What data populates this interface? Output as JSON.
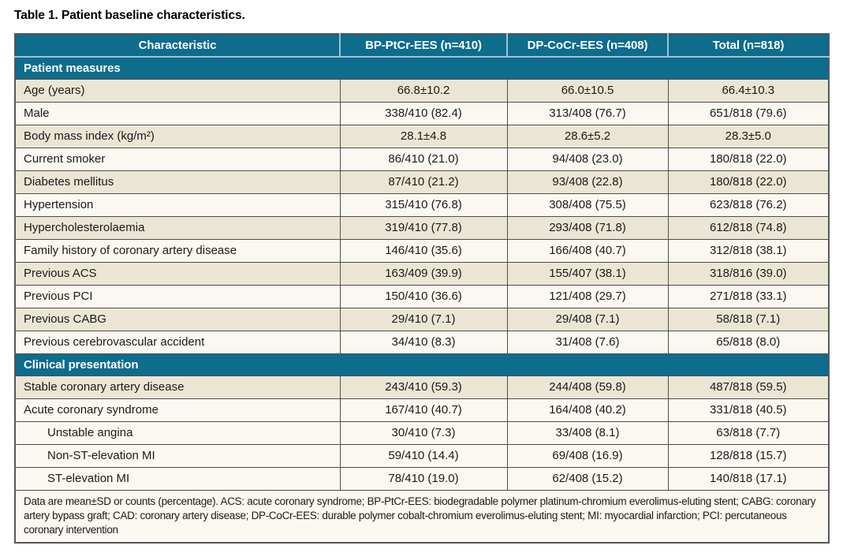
{
  "title": "Table 1. Patient baseline characteristics.",
  "colors": {
    "header_bg": "#0e6c8d",
    "row_beige": "#ebe6d4",
    "row_white": "#faf8f1",
    "header_divider": "#a3c0ce",
    "border_dark": "#4d4d4d",
    "border_outer": "#55585a"
  },
  "table": {
    "columns": [
      "Characteristic",
      "BP-PtCr-EES (n=410)",
      "DP-CoCr-EES (n=408)",
      "Total (n=818)"
    ],
    "sections": [
      {
        "header": "Patient measures",
        "rows": [
          {
            "label": "Age (years)",
            "indent": false,
            "shade": "beige",
            "values": [
              "66.8±10.2",
              "66.0±10.5",
              "66.4±10.3"
            ]
          },
          {
            "label": "Male",
            "indent": false,
            "shade": "white",
            "values": [
              "338/410 (82.4)",
              "313/408 (76.7)",
              "651/818 (79.6)"
            ]
          },
          {
            "label": "Body mass index (kg/m²)",
            "indent": false,
            "shade": "beige",
            "values": [
              "28.1±4.8",
              "28.6±5.2",
              "28.3±5.0"
            ]
          },
          {
            "label": "Current smoker",
            "indent": false,
            "shade": "white",
            "values": [
              "86/410 (21.0)",
              "94/408 (23.0)",
              "180/818 (22.0)"
            ]
          },
          {
            "label": "Diabetes mellitus",
            "indent": false,
            "shade": "beige",
            "values": [
              "87/410 (21.2)",
              "93/408 (22.8)",
              "180/818 (22.0)"
            ]
          },
          {
            "label": "Hypertension",
            "indent": false,
            "shade": "white",
            "values": [
              "315/410 (76.8)",
              "308/408 (75.5)",
              "623/818 (76.2)"
            ]
          },
          {
            "label": "Hypercholesterolaemia",
            "indent": false,
            "shade": "beige",
            "values": [
              "319/410 (77.8)",
              "293/408 (71.8)",
              "612/818 (74.8)"
            ]
          },
          {
            "label": "Family history of coronary artery disease",
            "indent": false,
            "shade": "white",
            "values": [
              "146/410 (35.6)",
              "166/408 (40.7)",
              "312/818 (38.1)"
            ]
          },
          {
            "label": "Previous ACS",
            "indent": false,
            "shade": "beige",
            "values": [
              "163/409 (39.9)",
              "155/407 (38.1)",
              "318/816 (39.0)"
            ]
          },
          {
            "label": "Previous PCI",
            "indent": false,
            "shade": "white",
            "values": [
              "150/410 (36.6)",
              "121/408 (29.7)",
              "271/818 (33.1)"
            ]
          },
          {
            "label": "Previous CABG",
            "indent": false,
            "shade": "beige",
            "values": [
              "29/410 (7.1)",
              "29/408 (7.1)",
              "58/818 (7.1)"
            ]
          },
          {
            "label": "Previous cerebrovascular accident",
            "indent": false,
            "shade": "white",
            "values": [
              "34/410 (8.3)",
              "31/408 (7.6)",
              "65/818 (8.0)"
            ]
          }
        ]
      },
      {
        "header": "Clinical presentation",
        "rows": [
          {
            "label": "Stable coronary artery disease",
            "indent": false,
            "shade": "beige",
            "values": [
              "243/410 (59.3)",
              "244/408 (59.8)",
              "487/818 (59.5)"
            ]
          },
          {
            "label": "Acute coronary syndrome",
            "indent": false,
            "shade": "white",
            "values": [
              "167/410 (40.7)",
              "164/408 (40.2)",
              "331/818 (40.5)"
            ]
          },
          {
            "label": "Unstable angina",
            "indent": true,
            "shade": "white",
            "values": [
              "30/410 (7.3)",
              "33/408 (8.1)",
              "63/818 (7.7)"
            ]
          },
          {
            "label": "Non-ST-elevation MI",
            "indent": true,
            "shade": "white",
            "values": [
              "59/410 (14.4)",
              "69/408 (16.9)",
              "128/818 (15.7)"
            ]
          },
          {
            "label": "ST-elevation MI",
            "indent": true,
            "shade": "white",
            "values": [
              "78/410 (19.0)",
              "62/408 (15.2)",
              "140/818 (17.1)"
            ]
          }
        ]
      }
    ],
    "footnote": "Data are mean±SD or counts (percentage). ACS: acute coronary syndrome; BP-PtCr-EES: biodegradable polymer platinum-chromium everolimus-eluting stent; CABG: coronary artery bypass graft; CAD: coronary artery disease; DP-CoCr-EES: durable polymer cobalt-chromium everolimus-eluting stent; MI: myocardial infarction; PCI: percutaneous coronary intervention"
  }
}
